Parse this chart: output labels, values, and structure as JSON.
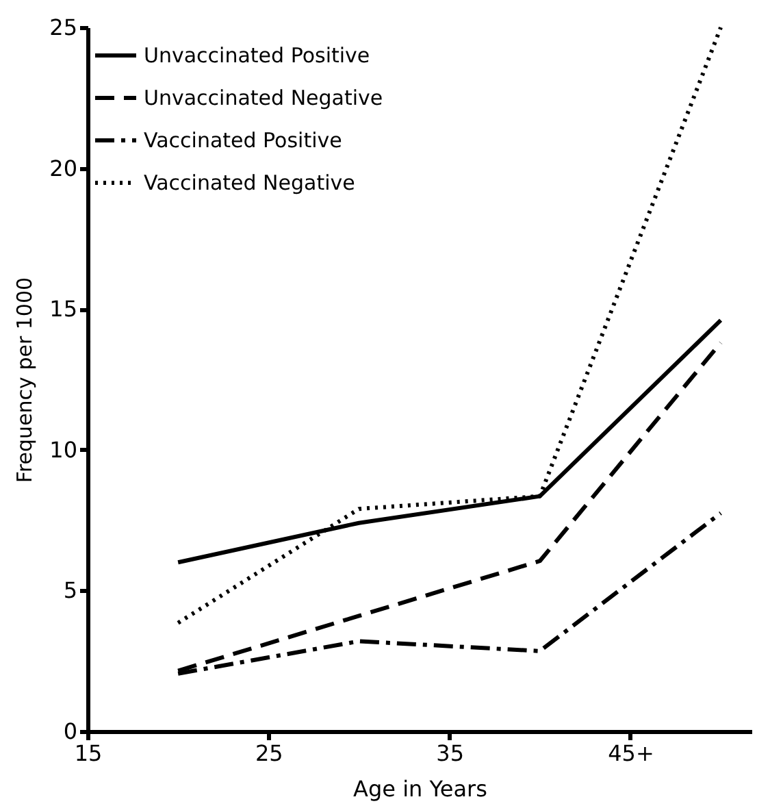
{
  "chart_data": {
    "type": "line",
    "xlabel": "Age in Years",
    "ylabel": "Frequency per 1000",
    "xlim": [
      15,
      51.7
    ],
    "xticks": [
      15,
      25,
      35,
      {
        "value": 45,
        "label": "45+"
      }
    ],
    "ylim": [
      0,
      25
    ],
    "yticks": [
      0,
      5,
      10,
      15,
      20,
      25
    ],
    "grid": false,
    "legend": "top left",
    "marker": "none",
    "series": [
      {
        "name": "Unvaccinated Positive",
        "color": "#000000",
        "line_style": "solid",
        "x": [
          20,
          30,
          40,
          50
        ],
        "values": [
          6.0,
          7.4,
          8.35,
          14.6
        ]
      },
      {
        "name": "Unvaccinated Negative",
        "color": "#000000",
        "line_style": "dashed",
        "x": [
          20,
          30,
          40,
          50
        ],
        "values": [
          2.15,
          4.1,
          6.05,
          13.8
        ]
      },
      {
        "name": "Vaccinated Positive",
        "color": "#000000",
        "line_style": "dashdot",
        "x": [
          20,
          30,
          40,
          50
        ],
        "values": [
          2.05,
          3.2,
          2.85,
          7.75
        ]
      },
      {
        "name": "Vaccinated Negative",
        "color": "#000000",
        "line_style": "dotted",
        "x": [
          20,
          30,
          40,
          50
        ],
        "values": [
          3.85,
          7.9,
          8.35,
          25
        ]
      }
    ]
  }
}
